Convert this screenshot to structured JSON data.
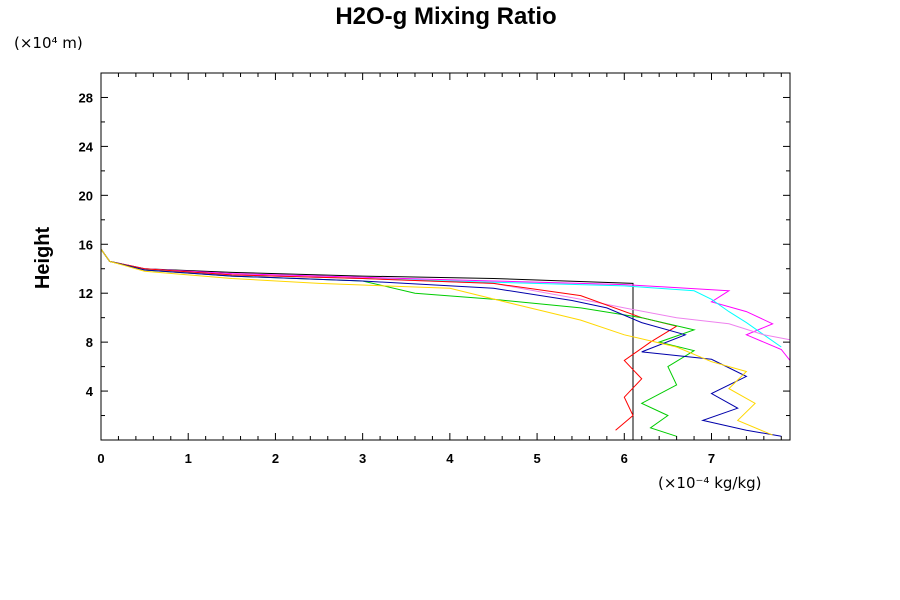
{
  "chart_data": {
    "type": "line",
    "title": "H2O-g Mixing Ratio",
    "xlabel": "",
    "ylabel": "Height",
    "x_unit": "(×10⁻⁴ kg/kg)",
    "y_unit": "(×10⁴ m)",
    "xlim": [
      0,
      7.9
    ],
    "ylim": [
      0,
      30
    ],
    "x_ticks": [
      "0",
      "1",
      "2",
      "3",
      "4",
      "5",
      "6",
      "7"
    ],
    "y_ticks": [
      "4",
      "8",
      "12",
      "16",
      "20",
      "24",
      "28"
    ],
    "grid": false,
    "legend": "none",
    "series": [
      {
        "color": "#000000",
        "points": [
          [
            0,
            30
          ],
          [
            0,
            15.6
          ],
          [
            0.1,
            14.6
          ],
          [
            0.5,
            14.0
          ],
          [
            1.5,
            13.7
          ],
          [
            3,
            13.4
          ],
          [
            4.5,
            13.2
          ],
          [
            6.1,
            12.8
          ],
          [
            6.1,
            0
          ]
        ]
      },
      {
        "color": "#ff00ff",
        "points": [
          [
            0,
            30
          ],
          [
            0,
            15.6
          ],
          [
            0.1,
            14.6
          ],
          [
            0.5,
            14.0
          ],
          [
            1.5,
            13.6
          ],
          [
            3,
            13.3
          ],
          [
            4.5,
            13.0
          ],
          [
            6,
            12.7
          ],
          [
            6.5,
            12.5
          ],
          [
            7.2,
            12.2
          ],
          [
            7.0,
            11.3
          ],
          [
            7.4,
            10.5
          ],
          [
            7.7,
            9.5
          ],
          [
            7.4,
            8.6
          ],
          [
            7.8,
            7.4
          ],
          [
            7.9,
            6.5
          ]
        ]
      },
      {
        "color": "#00ffff",
        "points": [
          [
            0,
            15.6
          ],
          [
            0.1,
            14.6
          ],
          [
            0.5,
            14.0
          ],
          [
            1.5,
            13.5
          ],
          [
            3,
            13.2
          ],
          [
            4.5,
            12.9
          ],
          [
            6,
            12.6
          ],
          [
            6.8,
            12.2
          ],
          [
            7.0,
            11.5
          ],
          [
            7.2,
            10.5
          ],
          [
            7.4,
            9.6
          ],
          [
            7.6,
            8.6
          ],
          [
            7.8,
            7.6
          ]
        ]
      },
      {
        "color": "#ee82ee",
        "points": [
          [
            0,
            15.6
          ],
          [
            0.1,
            14.6
          ],
          [
            0.5,
            14.0
          ],
          [
            1.5,
            13.5
          ],
          [
            3,
            13.2
          ],
          [
            4.5,
            12.8
          ],
          [
            5.5,
            11.5
          ],
          [
            6,
            10.8
          ],
          [
            6.6,
            10.0
          ],
          [
            7.2,
            9.5
          ],
          [
            7.6,
            8.6
          ],
          [
            7.9,
            8.2
          ]
        ]
      },
      {
        "color": "#ff0000",
        "points": [
          [
            0,
            15.6
          ],
          [
            0.1,
            14.6
          ],
          [
            0.5,
            14.0
          ],
          [
            1.5,
            13.5
          ],
          [
            3,
            13.2
          ],
          [
            4.5,
            12.8
          ],
          [
            5.5,
            11.8
          ],
          [
            6.2,
            10.0
          ],
          [
            6.6,
            9.3
          ],
          [
            6.3,
            8.0
          ],
          [
            6.0,
            6.5
          ],
          [
            6.2,
            5.0
          ],
          [
            6.0,
            3.5
          ],
          [
            6.1,
            2.0
          ],
          [
            5.9,
            0.8
          ]
        ]
      },
      {
        "color": "#00cc00",
        "points": [
          [
            0,
            15.6
          ],
          [
            0.1,
            14.6
          ],
          [
            0.5,
            13.9
          ],
          [
            1.5,
            13.4
          ],
          [
            3,
            13.0
          ],
          [
            3.6,
            12.0
          ],
          [
            4.5,
            11.5
          ],
          [
            5.5,
            10.8
          ],
          [
            6.2,
            10.0
          ],
          [
            6.8,
            9.0
          ],
          [
            6.4,
            8.0
          ],
          [
            6.8,
            7.3
          ],
          [
            6.5,
            6.0
          ],
          [
            6.6,
            4.5
          ],
          [
            6.2,
            3.0
          ],
          [
            6.5,
            2.0
          ],
          [
            6.3,
            1.0
          ],
          [
            6.6,
            0.3
          ]
        ]
      },
      {
        "color": "#0000aa",
        "points": [
          [
            0,
            15.6
          ],
          [
            0.1,
            14.6
          ],
          [
            0.5,
            13.9
          ],
          [
            1.5,
            13.4
          ],
          [
            3,
            13.0
          ],
          [
            4.5,
            12.4
          ],
          [
            5.4,
            11.4
          ],
          [
            5.8,
            10.8
          ],
          [
            6.2,
            9.6
          ],
          [
            6.7,
            8.6
          ],
          [
            6.2,
            7.2
          ],
          [
            7.0,
            6.6
          ],
          [
            7.4,
            5.2
          ],
          [
            7.0,
            3.8
          ],
          [
            7.3,
            2.6
          ],
          [
            6.9,
            1.6
          ],
          [
            7.4,
            0.8
          ],
          [
            7.8,
            0.3
          ]
        ]
      },
      {
        "color": "#ffd700",
        "points": [
          [
            0,
            15.6
          ],
          [
            0.1,
            14.6
          ],
          [
            0.5,
            13.8
          ],
          [
            1.5,
            13.2
          ],
          [
            2.5,
            12.8
          ],
          [
            4,
            12.4
          ],
          [
            4.8,
            11.0
          ],
          [
            5.5,
            9.8
          ],
          [
            6.0,
            8.6
          ],
          [
            6.6,
            7.6
          ],
          [
            7.0,
            6.4
          ],
          [
            7.4,
            5.6
          ],
          [
            7.2,
            4.2
          ],
          [
            7.5,
            3.0
          ],
          [
            7.3,
            1.6
          ],
          [
            7.7,
            0.4
          ]
        ]
      }
    ]
  }
}
